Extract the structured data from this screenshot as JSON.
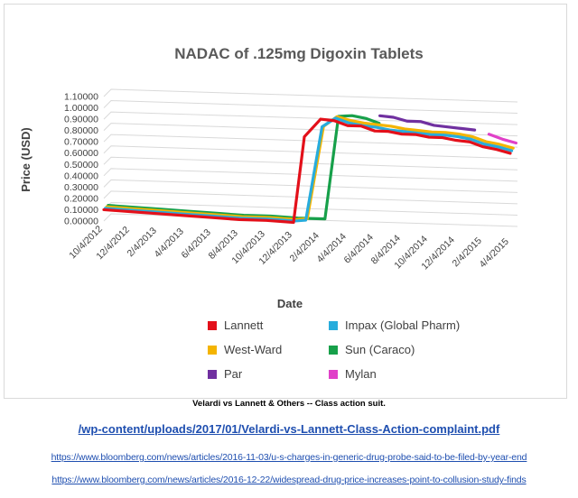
{
  "chart_data": {
    "type": "line",
    "title": "NADAC of .125mg Digoxin Tablets",
    "xlabel": "Date",
    "ylabel": "Price (USD)",
    "y_ticks": [
      "0.00000",
      "0.10000",
      "0.20000",
      "0.30000",
      "0.40000",
      "0.50000",
      "0.60000",
      "0.70000",
      "0.80000",
      "0.90000",
      "1.00000",
      "1.10000"
    ],
    "ylim": [
      0,
      1.1
    ],
    "x_tick_labels": [
      "10/4/2012",
      "12/4/2012",
      "2/4/2013",
      "4/4/2013",
      "6/4/2013",
      "8/4/2013",
      "10/4/2013",
      "12/4/2013",
      "2/4/2014",
      "4/4/2014",
      "6/4/2014",
      "8/4/2014",
      "10/4/2014",
      "12/4/2014",
      "2/4/2015",
      "4/4/2015"
    ],
    "x": [
      0,
      1,
      2,
      3,
      4,
      5,
      6,
      7,
      7.4,
      8,
      8.5,
      9,
      9.5,
      10,
      10.5,
      11,
      11.5,
      12,
      12.5,
      13,
      13.5,
      14,
      14.5,
      15
    ],
    "grid": true,
    "legend_position": "bottom",
    "series": [
      {
        "name": "Lannett",
        "color": "#e3101a",
        "values": [
          0.1,
          0.09,
          0.08,
          0.07,
          0.06,
          0.05,
          0.05,
          0.04,
          0.8,
          0.96,
          0.95,
          0.91,
          0.91,
          0.87,
          0.87,
          0.85,
          0.85,
          0.83,
          0.83,
          0.81,
          0.8,
          0.76,
          0.74,
          0.71
        ]
      },
      {
        "name": "Impax (Global Pharm)",
        "color": "#28acdc",
        "values": [
          0.1,
          0.09,
          0.08,
          0.07,
          0.06,
          0.05,
          0.05,
          0.04,
          0.05,
          0.88,
          0.96,
          0.92,
          0.9,
          0.89,
          0.87,
          0.86,
          0.85,
          0.84,
          0.84,
          0.83,
          0.81,
          0.77,
          0.75,
          0.72
        ]
      },
      {
        "name": "West-Ward",
        "color": "#f4b400",
        "values": [
          0.1,
          0.09,
          0.08,
          0.07,
          0.06,
          0.05,
          0.05,
          0.04,
          0.05,
          0.87,
          0.96,
          0.93,
          0.91,
          0.9,
          0.89,
          0.87,
          0.86,
          0.85,
          0.85,
          0.84,
          0.82,
          0.78,
          0.76,
          0.73
        ]
      },
      {
        "name": "Sun (Caraco)",
        "color": "#17a04a",
        "values": [
          0.1,
          0.09,
          0.08,
          0.07,
          0.06,
          0.05,
          0.05,
          0.04,
          0.04,
          0.04,
          0.95,
          0.96,
          0.94,
          0.9,
          null,
          null,
          null,
          null,
          null,
          null,
          null,
          null,
          null,
          null
        ]
      },
      {
        "name": "Par",
        "color": "#7030a0",
        "values": [
          null,
          null,
          null,
          null,
          null,
          null,
          null,
          null,
          null,
          null,
          null,
          null,
          null,
          0.96,
          0.95,
          0.92,
          0.92,
          0.89,
          0.88,
          0.87,
          0.86,
          null,
          null,
          null
        ]
      },
      {
        "name": "Mylan",
        "color": "#e040c8",
        "values": [
          null,
          null,
          null,
          null,
          null,
          null,
          null,
          null,
          null,
          null,
          null,
          null,
          null,
          null,
          null,
          null,
          null,
          null,
          null,
          null,
          null,
          0.82,
          0.78,
          0.75
        ]
      }
    ]
  },
  "caption": "Velardi vs Lannett & Others -- Class action suit.",
  "links": [
    "/wp-content/uploads/2017/01/Velardi-vs-Lannett-Class-Action-complaint.pdf",
    "https://www.bloomberg.com/news/articles/2016-11-03/u-s-charges-in-generic-drug-probe-said-to-be-filed-by-year-end",
    "https://www.bloomberg.com/news/articles/2016-12-22/widespread-drug-price-increases-point-to-collusion-study-finds"
  ]
}
